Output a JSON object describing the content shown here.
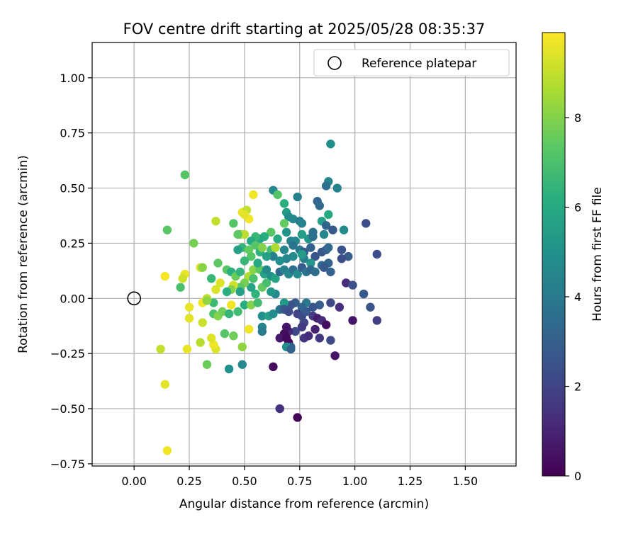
{
  "chart_data": {
    "type": "scatter",
    "title": "FOV centre drift starting at 2025/05/28 08:35:37",
    "xlabel": "Angular distance from reference (arcmin)",
    "ylabel": "Rotation from reference (arcmin)",
    "xlim": [
      -0.19,
      1.73
    ],
    "ylim": [
      -0.76,
      1.16
    ],
    "xticks": [
      "0.00",
      "0.25",
      "0.50",
      "0.75",
      "1.00",
      "1.25",
      "1.50"
    ],
    "yticks": [
      "−0.75",
      "−0.50",
      "−0.25",
      "0.00",
      "0.25",
      "0.50",
      "0.75",
      "1.00"
    ],
    "grid": true,
    "legend": {
      "position": "top-right",
      "label": "Reference platepar"
    },
    "reference_point": {
      "x": 0.0,
      "y": 0.0
    },
    "colorbar": {
      "label": "Hours from first FF file",
      "colormap": "viridis",
      "range": [
        0,
        9.9
      ],
      "ticks": [
        "0",
        "2",
        "4",
        "6",
        "8"
      ]
    },
    "series": [
      {
        "points": [
          [
            0.89,
            0.7,
            4.9
          ],
          [
            0.88,
            0.53,
            4.5
          ],
          [
            0.92,
            0.5,
            4.4
          ],
          [
            0.87,
            0.51,
            3.6
          ],
          [
            0.63,
            0.49,
            4.6
          ],
          [
            0.65,
            0.47,
            7.2
          ],
          [
            0.74,
            0.46,
            4.3
          ],
          [
            0.68,
            0.43,
            6.2
          ],
          [
            0.83,
            0.44,
            3.2
          ],
          [
            0.84,
            0.42,
            3.4
          ],
          [
            0.54,
            0.47,
            9.7
          ],
          [
            0.49,
            0.39,
            9.6
          ],
          [
            0.51,
            0.4,
            9.0
          ],
          [
            0.52,
            0.36,
            9.7
          ],
          [
            0.5,
            0.38,
            9.5
          ],
          [
            0.69,
            0.39,
            5.4
          ],
          [
            0.7,
            0.37,
            4.8
          ],
          [
            0.72,
            0.36,
            4.6
          ],
          [
            0.68,
            0.34,
            7.5
          ],
          [
            0.75,
            0.35,
            4.1
          ],
          [
            0.76,
            0.34,
            4.4
          ],
          [
            0.85,
            0.35,
            5.6
          ],
          [
            0.88,
            0.38,
            6.0
          ],
          [
            0.87,
            0.33,
            3.2
          ],
          [
            0.9,
            0.31,
            2.8
          ],
          [
            0.95,
            0.31,
            4.7
          ],
          [
            1.05,
            0.34,
            2.3
          ],
          [
            0.81,
            0.3,
            3.7
          ],
          [
            0.76,
            0.29,
            5.5
          ],
          [
            0.69,
            0.3,
            5.1
          ],
          [
            0.62,
            0.3,
            7.3
          ],
          [
            0.59,
            0.28,
            6.2
          ],
          [
            0.65,
            0.27,
            6.0
          ],
          [
            0.71,
            0.26,
            4.4
          ],
          [
            0.73,
            0.26,
            4.6
          ],
          [
            0.79,
            0.27,
            5.2
          ],
          [
            0.81,
            0.28,
            3.6
          ],
          [
            0.86,
            0.29,
            4.5
          ],
          [
            0.57,
            0.27,
            5.9
          ],
          [
            0.55,
            0.28,
            6.6
          ],
          [
            0.48,
            0.29,
            8.2
          ],
          [
            0.5,
            0.29,
            8.9
          ],
          [
            0.53,
            0.26,
            6.0
          ],
          [
            0.47,
            0.29,
            7.4
          ],
          [
            0.23,
            0.56,
            7.2
          ],
          [
            0.15,
            0.31,
            7.3
          ],
          [
            0.27,
            0.25,
            7.8
          ],
          [
            0.37,
            0.35,
            9.0
          ],
          [
            0.45,
            0.34,
            7.2
          ],
          [
            0.49,
            0.23,
            6.5
          ],
          [
            0.52,
            0.22,
            7.5
          ],
          [
            0.55,
            0.24,
            7.2
          ],
          [
            0.57,
            0.21,
            6.3
          ],
          [
            0.58,
            0.23,
            8.0
          ],
          [
            0.62,
            0.22,
            6.8
          ],
          [
            0.64,
            0.23,
            8.7
          ],
          [
            0.68,
            0.22,
            4.5
          ],
          [
            0.72,
            0.24,
            3.8
          ],
          [
            0.75,
            0.22,
            4.0
          ],
          [
            0.77,
            0.21,
            2.9
          ],
          [
            0.8,
            0.23,
            3.1
          ],
          [
            0.82,
            0.19,
            2.6
          ],
          [
            0.85,
            0.21,
            2.7
          ],
          [
            0.87,
            0.22,
            2.9
          ],
          [
            0.88,
            0.23,
            3.4
          ],
          [
            0.94,
            0.22,
            2.5
          ],
          [
            0.97,
            0.19,
            2.9
          ],
          [
            1.1,
            0.2,
            2.3
          ],
          [
            0.94,
            0.18,
            2.3
          ],
          [
            0.88,
            0.16,
            3.1
          ],
          [
            0.85,
            0.15,
            3.4
          ],
          [
            0.8,
            0.16,
            5.2
          ],
          [
            0.77,
            0.18,
            4.3
          ],
          [
            0.76,
            0.2,
            5.4
          ],
          [
            0.72,
            0.19,
            4.7
          ],
          [
            0.69,
            0.18,
            4.5
          ],
          [
            0.66,
            0.17,
            4.9
          ],
          [
            0.63,
            0.19,
            4.3
          ],
          [
            0.6,
            0.19,
            5.6
          ],
          [
            0.53,
            0.19,
            7.2
          ],
          [
            0.5,
            0.17,
            6.6
          ],
          [
            0.47,
            0.22,
            5.6
          ],
          [
            0.38,
            0.16,
            7.4
          ],
          [
            0.3,
            0.14,
            9.4
          ],
          [
            0.31,
            0.14,
            8.1
          ],
          [
            0.35,
            0.09,
            6.6
          ],
          [
            0.42,
            0.13,
            7.3
          ],
          [
            0.44,
            0.12,
            6.2
          ],
          [
            0.46,
            0.1,
            7.6
          ],
          [
            0.48,
            0.12,
            6.4
          ],
          [
            0.52,
            0.1,
            8.7
          ],
          [
            0.54,
            0.13,
            8.1
          ],
          [
            0.57,
            0.13,
            7.4
          ],
          [
            0.59,
            0.11,
            5.7
          ],
          [
            0.62,
            0.1,
            4.9
          ],
          [
            0.64,
            0.09,
            5.8
          ],
          [
            0.66,
            0.12,
            3.3
          ],
          [
            0.68,
            0.13,
            4.3
          ],
          [
            0.7,
            0.11,
            4.6
          ],
          [
            0.72,
            0.13,
            3.6
          ],
          [
            0.74,
            0.11,
            4.7
          ],
          [
            0.76,
            0.14,
            2.9
          ],
          [
            0.78,
            0.12,
            3.8
          ],
          [
            0.8,
            0.13,
            3.3
          ],
          [
            0.82,
            0.12,
            3.5
          ],
          [
            0.86,
            0.14,
            2.7
          ],
          [
            0.89,
            0.12,
            3.1
          ],
          [
            0.96,
            0.07,
            1.2
          ],
          [
            0.99,
            0.06,
            2.4
          ],
          [
            1.04,
            0.02,
            2.8
          ],
          [
            1.07,
            -0.04,
            2.5
          ],
          [
            1.1,
            -0.1,
            1.8
          ],
          [
            0.99,
            -0.1,
            0.6
          ],
          [
            0.93,
            -0.04,
            1.3
          ],
          [
            0.89,
            -0.02,
            2.2
          ],
          [
            0.84,
            -0.03,
            2.9
          ],
          [
            0.81,
            -0.04,
            2.6
          ],
          [
            0.78,
            -0.02,
            3.9
          ],
          [
            0.76,
            -0.04,
            3.3
          ],
          [
            0.73,
            -0.02,
            2.9
          ],
          [
            0.71,
            -0.03,
            2.5
          ],
          [
            0.68,
            -0.02,
            5.2
          ],
          [
            0.64,
            0.02,
            4.6
          ],
          [
            0.62,
            0.03,
            5.2
          ],
          [
            0.58,
            0.05,
            7.5
          ],
          [
            0.55,
            0.02,
            6.4
          ],
          [
            0.53,
            0.05,
            5.7
          ],
          [
            0.5,
            0.07,
            7.8
          ],
          [
            0.48,
            0.05,
            7.4
          ],
          [
            0.45,
            0.06,
            9.2
          ],
          [
            0.44,
            0.04,
            8.0
          ],
          [
            0.42,
            0.03,
            6.2
          ],
          [
            0.39,
            0.07,
            9.4
          ],
          [
            0.37,
            0.04,
            9.4
          ],
          [
            0.36,
            -0.02,
            6.7
          ],
          [
            0.33,
            0.0,
            9.0
          ],
          [
            0.31,
            -0.02,
            9.7
          ],
          [
            0.25,
            -0.04,
            9.6
          ],
          [
            0.21,
            0.05,
            7.0
          ],
          [
            0.14,
            0.1,
            9.8
          ],
          [
            0.23,
            0.11,
            9.6
          ],
          [
            0.22,
            0.09,
            9.2
          ],
          [
            0.36,
            -0.07,
            7.1
          ],
          [
            0.38,
            -0.08,
            8.0
          ],
          [
            0.4,
            -0.06,
            7.7
          ],
          [
            0.43,
            -0.07,
            6.5
          ],
          [
            0.44,
            -0.03,
            9.7
          ],
          [
            0.47,
            -0.06,
            6.8
          ],
          [
            0.5,
            -0.03,
            6.2
          ],
          [
            0.53,
            -0.03,
            8.0
          ],
          [
            0.56,
            -0.02,
            6.8
          ],
          [
            0.58,
            -0.08,
            4.9
          ],
          [
            0.61,
            -0.08,
            5.6
          ],
          [
            0.63,
            -0.07,
            4.8
          ],
          [
            0.66,
            -0.05,
            3.8
          ],
          [
            0.68,
            -0.05,
            2.7
          ],
          [
            0.7,
            -0.06,
            2.3
          ],
          [
            0.74,
            -0.07,
            2.0
          ],
          [
            0.76,
            -0.08,
            2.2
          ],
          [
            0.78,
            -0.06,
            2.8
          ],
          [
            0.81,
            -0.08,
            1.8
          ],
          [
            0.83,
            -0.09,
            0.8
          ],
          [
            0.85,
            -0.1,
            1.2
          ],
          [
            0.87,
            -0.12,
            0.4
          ],
          [
            0.82,
            -0.14,
            0.9
          ],
          [
            0.77,
            -0.11,
            2.1
          ],
          [
            0.76,
            -0.13,
            1.7
          ],
          [
            0.73,
            -0.15,
            2.2
          ],
          [
            0.7,
            -0.15,
            1.1
          ],
          [
            0.69,
            -0.13,
            0.6
          ],
          [
            0.68,
            -0.16,
            0.4
          ],
          [
            0.66,
            -0.18,
            0.7
          ],
          [
            0.69,
            -0.18,
            0.2
          ],
          [
            0.7,
            -0.2,
            0.3
          ],
          [
            0.71,
            -0.22,
            3.2
          ],
          [
            0.69,
            -0.22,
            4.9
          ],
          [
            0.71,
            -0.23,
            3.1
          ],
          [
            0.77,
            -0.18,
            1.6
          ],
          [
            0.79,
            -0.17,
            1.2
          ],
          [
            0.84,
            -0.18,
            1.6
          ],
          [
            0.89,
            -0.19,
            2.2
          ],
          [
            0.91,
            -0.26,
            0.6
          ],
          [
            0.58,
            -0.13,
            4.5
          ],
          [
            0.58,
            -0.15,
            4.1
          ],
          [
            0.52,
            -0.14,
            9.7
          ],
          [
            0.45,
            -0.17,
            7.7
          ],
          [
            0.41,
            -0.16,
            7.2
          ],
          [
            0.37,
            -0.23,
            9.4
          ],
          [
            0.36,
            -0.21,
            9.7
          ],
          [
            0.35,
            -0.18,
            9.4
          ],
          [
            0.31,
            -0.11,
            9.1
          ],
          [
            0.3,
            -0.2,
            8.8
          ],
          [
            0.33,
            -0.3,
            7.6
          ],
          [
            0.43,
            -0.32,
            5.0
          ],
          [
            0.49,
            -0.3,
            4.6
          ],
          [
            0.49,
            -0.22,
            8.2
          ],
          [
            0.24,
            -0.23,
            9.6
          ],
          [
            0.25,
            -0.09,
            9.5
          ],
          [
            0.12,
            -0.23,
            9.0
          ],
          [
            0.14,
            -0.39,
            9.5
          ],
          [
            0.15,
            -0.69,
            9.7
          ],
          [
            0.63,
            -0.31,
            0.3
          ],
          [
            0.66,
            -0.5,
            1.4
          ],
          [
            0.74,
            -0.54,
            0.1
          ],
          [
            0.6,
            0.07,
            6.9
          ],
          [
            0.56,
            0.16,
            6.0
          ],
          [
            0.6,
            0.13,
            4.7
          ],
          [
            0.54,
            0.09,
            7.0
          ],
          [
            0.33,
            -0.01,
            8.2
          ],
          [
            0.48,
            0.03,
            5.6
          ]
        ]
      }
    ]
  }
}
